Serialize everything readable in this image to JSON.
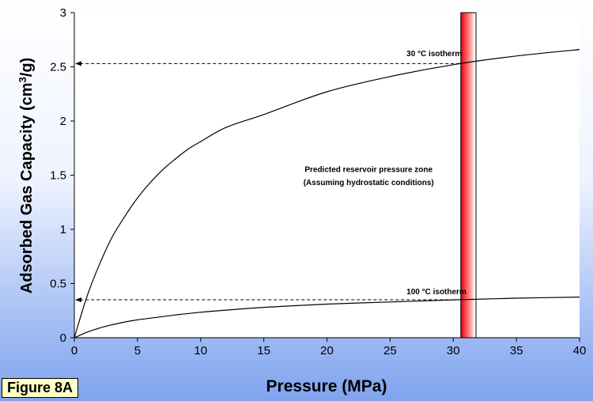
{
  "figure_label": "Figure 8A",
  "chart_data": {
    "type": "line",
    "xlabel": "Pressure (MPa)",
    "ylabel_main": "Adsorbed Gas Capacity (cm",
    "ylabel_sup": "3",
    "ylabel_tail": "/g)",
    "xlim": [
      0,
      40
    ],
    "ylim": [
      0,
      3
    ],
    "xticks": [
      0,
      5,
      10,
      15,
      20,
      25,
      30,
      35,
      40
    ],
    "yticks": [
      0,
      0.5,
      1,
      1.5,
      2,
      2.5,
      3
    ],
    "ytick_labels": [
      "0",
      "0.5",
      "1",
      "1.5",
      "2",
      "2.5",
      "3"
    ],
    "grid": false,
    "series": [
      {
        "name": "30 °C isotherm",
        "x": [
          0,
          1,
          2,
          3,
          4,
          5,
          6,
          7,
          8,
          9,
          10,
          12,
          15,
          20,
          25,
          30,
          35,
          40
        ],
        "y": [
          0,
          0.38,
          0.68,
          0.93,
          1.12,
          1.29,
          1.43,
          1.55,
          1.65,
          1.74,
          1.81,
          1.94,
          2.06,
          2.27,
          2.41,
          2.52,
          2.6,
          2.66
        ]
      },
      {
        "name": "100 °C isotherm",
        "x": [
          0,
          1,
          2,
          3,
          4,
          5,
          6,
          8,
          10,
          12,
          15,
          20,
          25,
          30,
          35,
          40
        ],
        "y": [
          0,
          0.05,
          0.09,
          0.12,
          0.145,
          0.165,
          0.18,
          0.21,
          0.235,
          0.255,
          0.28,
          0.31,
          0.33,
          0.35,
          0.365,
          0.375
        ]
      }
    ],
    "reference_lines": [
      {
        "y": 2.53,
        "x_end": 30.5
      },
      {
        "y": 0.35,
        "x_end": 30.5
      }
    ],
    "zone": {
      "x_start": 30.6,
      "x_red_end": 31.6,
      "x_end": 31.8,
      "label_line1": "Predicted reservoir pressure zone",
      "label_line2": "(Assuming hydrostatic conditions)",
      "label_x": 23.3,
      "label_y1": 1.53,
      "label_y2": 1.41,
      "colors": {
        "edge": "#d9001a",
        "mid": "#ff5a5a",
        "light": "#ffd0d0"
      }
    },
    "annotations": [
      {
        "text": "30 °C isotherm",
        "x": 26.3,
        "y": 2.6
      },
      {
        "text": "100 °C isotherm",
        "x": 26.3,
        "y": 0.4
      }
    ]
  }
}
